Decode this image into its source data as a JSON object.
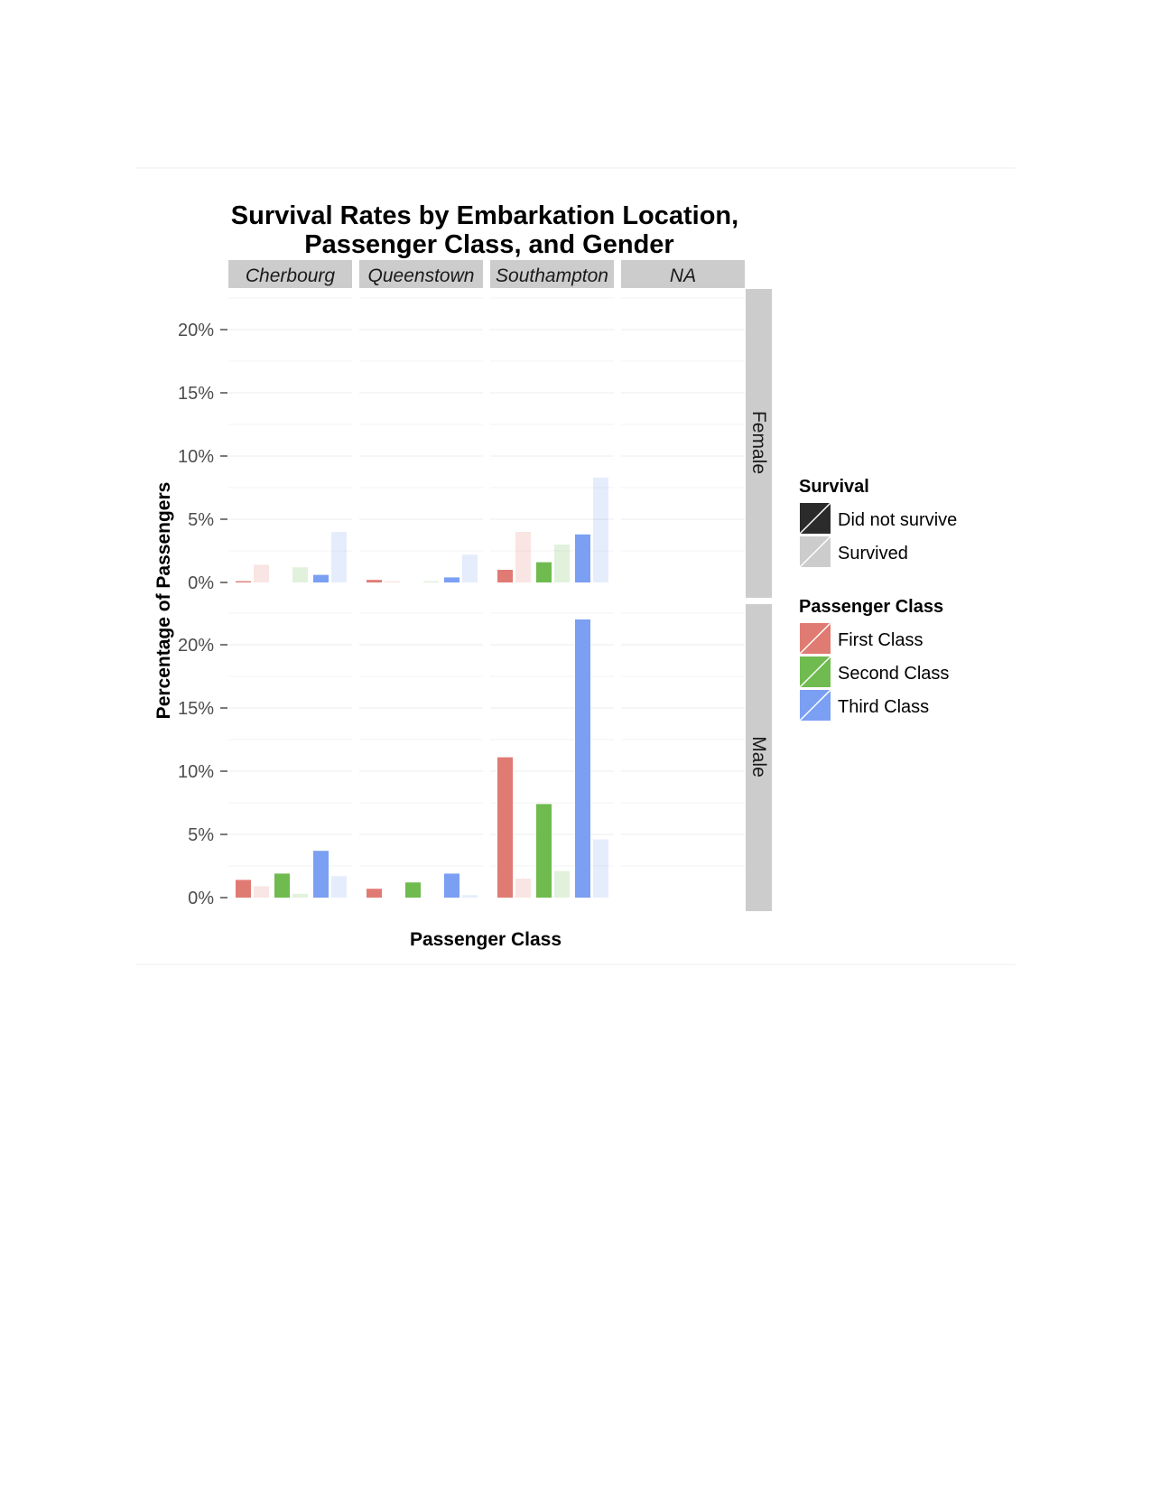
{
  "chart_data": {
    "type": "bar",
    "title_lines": [
      "Survival Rates by Embarkation Location,",
      "Passenger Class, and Gender"
    ],
    "xlabel": "Passenger Class",
    "ylabel": "Percentage of Passengers",
    "ylim": [
      0,
      0.225
    ],
    "yticks": [
      0,
      0.05,
      0.1,
      0.15,
      0.2
    ],
    "ytick_labels": [
      "0%",
      "5%",
      "10%",
      "15%",
      "20%"
    ],
    "grid": true,
    "legend_position": "right",
    "facet_columns": [
      "Cherbourg",
      "Queenstown",
      "Southampton",
      "NA"
    ],
    "facet_rows": [
      "Female",
      "Male"
    ],
    "classes": [
      "First Class",
      "Second Class",
      "Third Class"
    ],
    "survival_levels": [
      "Did not survive",
      "Survived"
    ],
    "colors": {
      "First Class": "#e07b73",
      "Second Class": "#6fbb4f",
      "Third Class": "#7b9ff2",
      "Did not survive": "#2b2b2b",
      "Survived": "#cccccc",
      "strip": "#cccccc"
    },
    "survived_alpha": 0.2,
    "panels": [
      {
        "row": "Female",
        "col": "Cherbourg",
        "did_not_survive": [
          0.001,
          0.0,
          0.006
        ],
        "survived": [
          0.014,
          0.012,
          0.04
        ]
      },
      {
        "row": "Female",
        "col": "Queenstown",
        "did_not_survive": [
          0.002,
          0.0,
          0.004
        ],
        "survived": [
          0.001,
          0.001,
          0.022
        ]
      },
      {
        "row": "Female",
        "col": "Southampton",
        "did_not_survive": [
          0.01,
          0.016,
          0.038
        ],
        "survived": [
          0.04,
          0.03,
          0.083
        ]
      },
      {
        "row": "Female",
        "col": "NA",
        "did_not_survive": [
          0,
          0,
          0
        ],
        "survived": [
          0,
          0,
          0
        ]
      },
      {
        "row": "Male",
        "col": "Cherbourg",
        "did_not_survive": [
          0.014,
          0.019,
          0.037
        ],
        "survived": [
          0.009,
          0.003,
          0.017
        ]
      },
      {
        "row": "Male",
        "col": "Queenstown",
        "did_not_survive": [
          0.007,
          0.012,
          0.019
        ],
        "survived": [
          0.0,
          0.0,
          0.002
        ]
      },
      {
        "row": "Male",
        "col": "Southampton",
        "did_not_survive": [
          0.111,
          0.074,
          0.22
        ],
        "survived": [
          0.015,
          0.021,
          0.046
        ]
      },
      {
        "row": "Male",
        "col": "NA",
        "did_not_survive": [
          0,
          0,
          0
        ],
        "survived": [
          0,
          0,
          0
        ]
      }
    ]
  },
  "legend": {
    "survival_title": "Survival",
    "survival_items": [
      "Did not survive",
      "Survived"
    ],
    "class_title": "Passenger Class",
    "class_items": [
      "First Class",
      "Second Class",
      "Third Class"
    ]
  }
}
